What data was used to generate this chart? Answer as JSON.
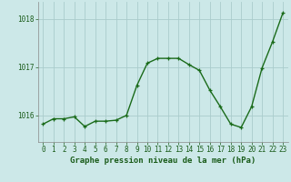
{
  "x": [
    0,
    1,
    2,
    3,
    4,
    5,
    6,
    7,
    8,
    9,
    10,
    11,
    12,
    13,
    14,
    15,
    16,
    17,
    18,
    19,
    20,
    21,
    22,
    23
  ],
  "y": [
    1015.82,
    1015.93,
    1015.93,
    1015.97,
    1015.77,
    1015.88,
    1015.88,
    1015.9,
    1016.0,
    1016.62,
    1017.08,
    1017.18,
    1017.18,
    1017.18,
    1017.05,
    1016.93,
    1016.52,
    1016.18,
    1015.82,
    1015.75,
    1016.18,
    1016.98,
    1017.52,
    1018.12
  ],
  "line_color": "#1a6b1a",
  "marker": "+",
  "marker_size": 3.5,
  "linewidth": 1.0,
  "background_color": "#cce8e8",
  "grid_color": "#aacccc",
  "xlabel": "Graphe pression niveau de la mer (hPa)",
  "xlabel_fontsize": 6.5,
  "xlabel_color": "#1a5c1a",
  "tick_color": "#1a5c1a",
  "tick_fontsize": 5.5,
  "ytick_positions": [
    1016.0,
    1017.0,
    1018.0
  ],
  "ytick_labels": [
    "1016",
    "1017",
    "1018"
  ],
  "ylim": [
    1015.45,
    1018.35
  ],
  "xlim": [
    -0.5,
    23.5
  ]
}
